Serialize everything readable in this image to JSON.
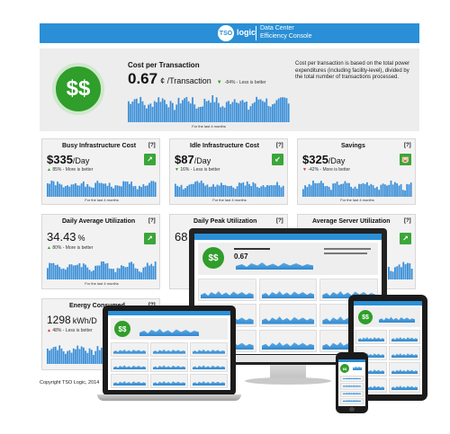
{
  "header": {
    "logo_mark": "TSO",
    "logo_word": "logic",
    "title_line1": "Data Center",
    "title_line2": "Efficiency Console"
  },
  "hero": {
    "title": "Cost per Transaction",
    "value": "0.67",
    "unit": "¢ /Transaction",
    "delta": "-84% - Less is better",
    "footer": "For the last 4 months",
    "description": "Cost per transaction is based on the total power expenditures (including facility-level), divided by the total number of transactions processed.",
    "symbol": "$$",
    "help": "[?]"
  },
  "panels": [
    {
      "title": "Busy Infrastructure Cost",
      "value": "$335",
      "unit": "/Day",
      "delta": "85% - More is better",
      "footer": "For the last 4 months",
      "badge": "↗",
      "badge_color": "#3aa639",
      "arrow": "▲",
      "arrow_color": "#2f9e2a"
    },
    {
      "title": "Idle Infrastructure Cost",
      "value": "$87",
      "unit": "/Day",
      "delta": "16% - Less is better",
      "footer": "For the last 4 months",
      "badge": "↙",
      "badge_color": "#3aa639",
      "arrow": "▼",
      "arrow_color": "#2f9e2a"
    },
    {
      "title": "Savings",
      "value": "$325",
      "unit": "/Day",
      "delta": "-42% - More is better",
      "footer": "For the last 4 months",
      "badge": "🐷",
      "badge_color": "#3aa639",
      "arrow": "▼",
      "arrow_color": "#d33"
    },
    {
      "title": "Daily Average Utilization",
      "value": "34.43",
      "unit": "%",
      "delta": "80% - More is better",
      "footer": "For the last 4 months",
      "badge": "↗",
      "badge_color": "#3aa639",
      "arrow": "▲",
      "arrow_color": "#2f9e2a"
    },
    {
      "title": "Daily Peak Utilization",
      "value": "68",
      "unit": "",
      "delta": "",
      "footer": "",
      "badge": "",
      "badge_color": "#3aa639",
      "arrow": "",
      "arrow_color": "#2f9e2a"
    },
    {
      "title": "Average Server Utilization",
      "value": "",
      "unit": "",
      "delta": "",
      "footer": "",
      "badge": "↗",
      "badge_color": "#3aa639",
      "arrow": "",
      "arrow_color": "#2f9e2a"
    },
    {
      "title": "Energy Consumed",
      "value": "1298",
      "unit": "kWh/D",
      "delta": "48% - Less is better",
      "footer": "",
      "badge": "",
      "badge_color": "#3aa639",
      "arrow": "▲",
      "arrow_color": "#d33"
    }
  ],
  "copyright": "Copyright TSO Logic, 2014",
  "colors": {
    "brand_blue": "#2a8fd6",
    "good_green": "#2f9e2a",
    "bad_red": "#d33",
    "bar_blue": "#3b8fd8"
  }
}
